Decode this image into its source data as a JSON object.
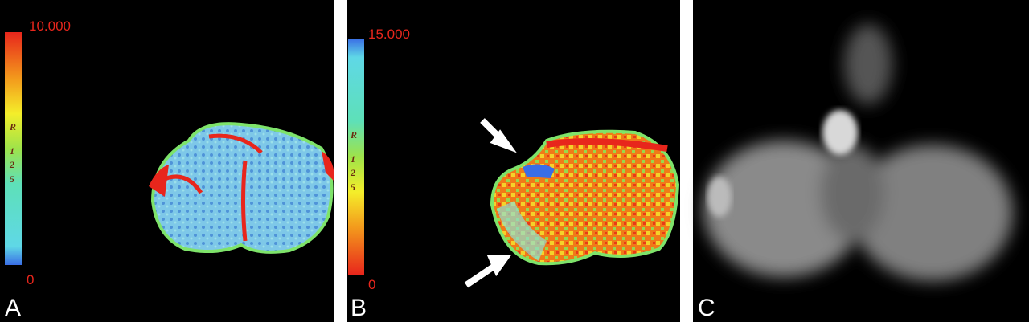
{
  "panels": [
    {
      "label": "A",
      "scale_max": "10.000",
      "scale_min": "0",
      "scale_marker": [
        "R",
        "1",
        "2",
        "5"
      ]
    },
    {
      "label": "B",
      "scale_max": "15.000",
      "scale_min": "0",
      "scale_marker": [
        "R",
        "1",
        "2",
        "5"
      ]
    },
    {
      "label": "C"
    }
  ]
}
